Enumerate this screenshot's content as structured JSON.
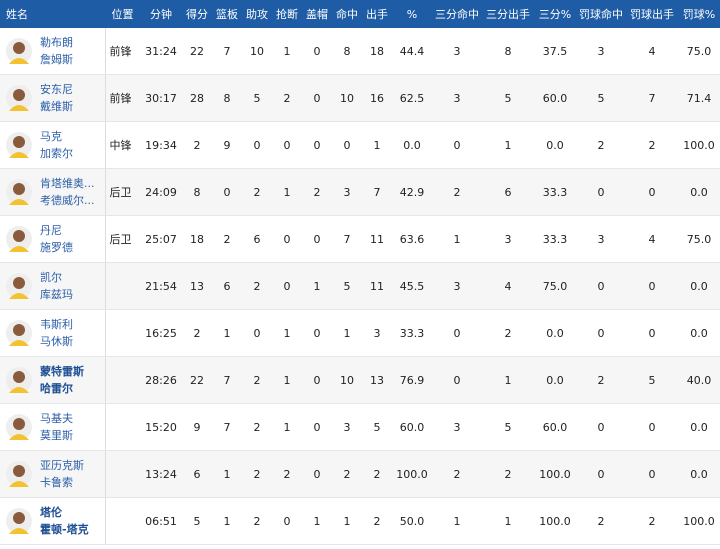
{
  "table": {
    "header": [
      "姓名",
      "位置",
      "分钟",
      "得分",
      "篮板",
      "助攻",
      "抢断",
      "盖帽",
      "命中",
      "出手",
      "%",
      "三分命中",
      "三分出手",
      "三分%",
      "罚球命中",
      "罚球出手",
      "罚球%"
    ],
    "rows": [
      {
        "name": [
          "勒布朗",
          "詹姆斯"
        ],
        "cells": [
          "前锋",
          "31:24",
          "22",
          "7",
          "10",
          "1",
          "0",
          "8",
          "18",
          "44.4",
          "3",
          "8",
          "37.5",
          "3",
          "4",
          "75.0"
        ]
      },
      {
        "name": [
          "安东尼",
          "戴维斯"
        ],
        "cells": [
          "前锋",
          "30:17",
          "28",
          "8",
          "5",
          "2",
          "0",
          "10",
          "16",
          "62.5",
          "3",
          "5",
          "60.0",
          "5",
          "7",
          "71.4"
        ]
      },
      {
        "name": [
          "马克",
          "加索尔"
        ],
        "cells": [
          "中锋",
          "19:34",
          "2",
          "9",
          "0",
          "0",
          "0",
          "0",
          "1",
          "0.0",
          "0",
          "1",
          "0.0",
          "2",
          "2",
          "100.0"
        ]
      },
      {
        "name": [
          "肯塔维奥...",
          "考德威尔..."
        ],
        "cells": [
          "后卫",
          "24:09",
          "8",
          "0",
          "2",
          "1",
          "2",
          "3",
          "7",
          "42.9",
          "2",
          "6",
          "33.3",
          "0",
          "0",
          "0.0"
        ]
      },
      {
        "name": [
          "丹尼",
          "施罗德"
        ],
        "cells": [
          "后卫",
          "25:07",
          "18",
          "2",
          "6",
          "0",
          "0",
          "7",
          "11",
          "63.6",
          "1",
          "3",
          "33.3",
          "3",
          "4",
          "75.0"
        ]
      },
      {
        "name": [
          "凯尔",
          "库兹玛"
        ],
        "cells": [
          null,
          "21:54",
          "13",
          "6",
          "2",
          "0",
          "1",
          "5",
          "11",
          "45.5",
          "3",
          "4",
          "75.0",
          "0",
          "0",
          "0.0"
        ]
      },
      {
        "name": [
          "韦斯利",
          "马休斯"
        ],
        "cells": [
          null,
          "16:25",
          "2",
          "1",
          "0",
          "1",
          "0",
          "1",
          "3",
          "33.3",
          "0",
          "2",
          "0.0",
          "0",
          "0",
          "0.0"
        ]
      },
      {
        "name": [
          "蒙特雷斯",
          "哈雷尔"
        ],
        "emphasis": true,
        "cells": [
          null,
          "28:26",
          "22",
          "7",
          "2",
          "1",
          "0",
          "10",
          "13",
          "76.9",
          "0",
          "1",
          "0.0",
          "2",
          "5",
          "40.0"
        ]
      },
      {
        "name": [
          "马基夫",
          "莫里斯"
        ],
        "cells": [
          null,
          "15:20",
          "9",
          "7",
          "2",
          "1",
          "0",
          "3",
          "5",
          "60.0",
          "3",
          "5",
          "60.0",
          "0",
          "0",
          "0.0"
        ]
      },
      {
        "name": [
          "亚历克斯",
          "卡鲁索"
        ],
        "cells": [
          null,
          "13:24",
          "6",
          "1",
          "2",
          "2",
          "0",
          "2",
          "2",
          "100.0",
          "2",
          "2",
          "100.0",
          "0",
          "0",
          "0.0"
        ]
      },
      {
        "name": [
          "塔伦",
          "霍顿-塔克"
        ],
        "emphasis": true,
        "cells": [
          null,
          "06:51",
          "5",
          "1",
          "2",
          "0",
          "1",
          "1",
          "2",
          "50.0",
          "1",
          "1",
          "100.0",
          "2",
          "2",
          "100.0"
        ]
      }
    ]
  }
}
